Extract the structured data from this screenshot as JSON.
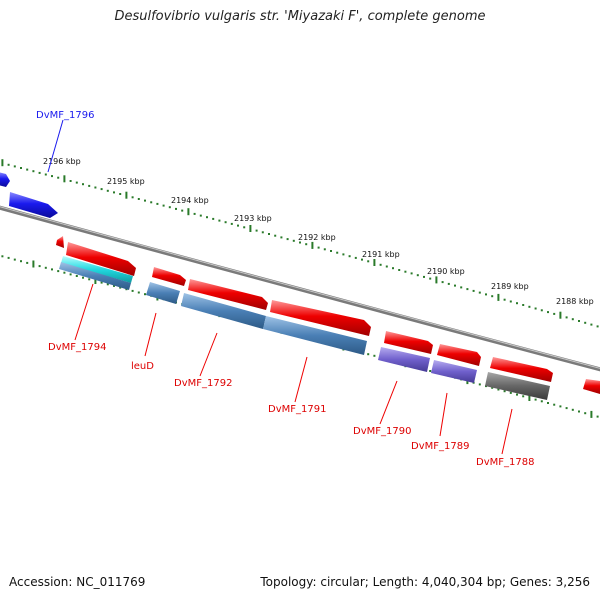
{
  "title": "Desulfovibrio vulgaris str. 'Miyazaki F', complete genome",
  "footer": {
    "accession": "Accession: NC_011769",
    "summary": "Topology: circular; Length: 4,040,304 bp; Genes: 3,256"
  },
  "kbp_ticks": [
    "2196 kbp",
    "2195 kbp",
    "2194 kbp",
    "2193 kbp",
    "2192 kbp",
    "2191 kbp",
    "2190 kbp",
    "2189 kbp",
    "2188 kbp"
  ],
  "gene_labels": [
    "DvMF_1796",
    "DvMF_1794",
    "leuD",
    "DvMF_1792",
    "DvMF_1791",
    "DvMF_1790",
    "DvMF_1789",
    "DvMF_1788"
  ],
  "colors": {
    "forward_gene": "#ee0000",
    "reverse_gene": "#1a1aee",
    "cds_track": "#4a7fb5",
    "rna_track": "#22d8e0",
    "purple_track": "#7060cc",
    "gray_track": "#666666",
    "tick_marks": "#2a7a2a",
    "backbone": "#808080"
  }
}
